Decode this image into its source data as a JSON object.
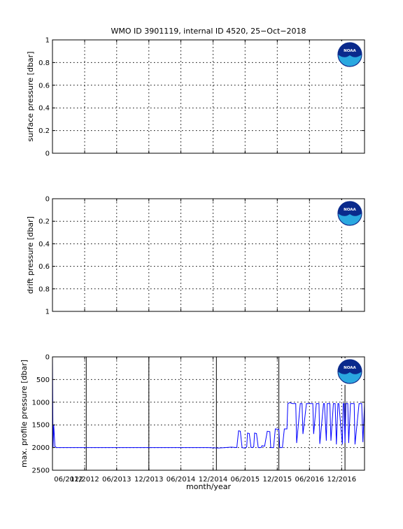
{
  "title": "WMO ID 3901119, internal ID 4520, 25−Oct−2018",
  "x_tick_labels": [
    "06/2012",
    "12/2012",
    "06/2013",
    "12/2013",
    "06/2014",
    "12/2014",
    "06/2015",
    "12/2015",
    "06/2016",
    "12/2016"
  ],
  "xlabel": "month/year",
  "logo_text": "NOAA",
  "colors": {
    "series": "#0000ff",
    "logo_blue": "#0a2a8c",
    "logo_cyan": "#2aa8e0"
  },
  "chart_data": [
    {
      "type": "line",
      "ylabel": "surface pressure [dbar]",
      "ylim": [
        0,
        1
      ],
      "y_reversed": false,
      "y_ticks": [
        "0",
        "0.2",
        "0.4",
        "0.6",
        "0.8",
        "1"
      ],
      "grid": true,
      "series": []
    },
    {
      "type": "line",
      "ylabel": "drift pressure [dbar]",
      "ylim": [
        0,
        1
      ],
      "y_reversed": true,
      "y_ticks": [
        "0",
        "0.2",
        "0.4",
        "0.6",
        "0.8",
        "1"
      ],
      "grid": true,
      "series": []
    },
    {
      "type": "line",
      "ylabel": "max. profile pressure [dbar]",
      "ylim": [
        0,
        2500
      ],
      "y_reversed": true,
      "y_ticks": [
        "0",
        "500",
        "1000",
        "1500",
        "2000",
        "2500"
      ],
      "grid": true,
      "vertical_lines_at": [
        "2012-12-10",
        "2013-12-01",
        "2014-12-20",
        "2015-12-10",
        "2016-12-20"
      ],
      "series": [
        {
          "x": [
            "2012-06-01",
            "2012-06-04",
            "2012-06-08",
            "2012-06-15",
            "2012-06-25",
            "2012-07-10",
            "2013-06-01",
            "2014-06-01",
            "2014-11-01",
            "2015-01-01",
            "2015-03-15",
            "2015-04-15",
            "2015-04-25",
            "2015-05-05",
            "2015-05-15",
            "2015-05-25",
            "2015-06-10",
            "2015-06-15",
            "2015-06-25",
            "2015-07-05",
            "2015-07-20",
            "2015-07-25",
            "2015-08-05",
            "2015-08-15",
            "2015-09-01",
            "2015-09-05",
            "2015-09-20",
            "2015-10-05",
            "2015-10-20",
            "2015-10-25",
            "2015-11-10",
            "2015-11-20",
            "2015-12-10",
            "2015-12-15",
            "2015-12-30",
            "2016-01-10",
            "2016-01-25",
            "2016-01-30",
            "2016-02-10",
            "2016-02-25",
            "2016-03-15",
            "2016-03-20",
            "2016-04-10",
            "2016-04-20",
            "2016-04-25",
            "2016-05-15",
            "2016-05-20",
            "2016-06-20",
            "2016-06-25",
            "2016-07-10",
            "2016-07-15",
            "2016-07-25",
            "2016-07-30",
            "2016-08-20",
            "2016-08-25",
            "2016-09-05",
            "2016-09-10",
            "2016-09-25",
            "2016-10-01",
            "2016-10-15",
            "2016-10-25",
            "2016-11-01",
            "2016-11-10",
            "2016-11-15",
            "2016-12-05",
            "2016-12-10",
            "2016-12-15",
            "2016-12-20",
            "2016-12-25",
            "2017-01-05",
            "2017-01-10",
            "2017-01-20",
            "2017-01-25",
            "2017-02-10",
            "2017-02-15",
            "2017-03-10",
            "2017-03-15",
            "2017-03-25",
            "2017-04-01",
            "2017-04-10"
          ],
          "values": [
            0,
            2000,
            1500,
            1980,
            2000,
            2000,
            2000,
            2000,
            2000,
            2010,
            1990,
            2000,
            1630,
            1640,
            2000,
            2010,
            1990,
            1680,
            1690,
            2000,
            1990,
            1680,
            1690,
            2000,
            2000,
            1960,
            1970,
            1640,
            1650,
            2000,
            2000,
            1590,
            1600,
            2000,
            2000,
            1590,
            1590,
            1030,
            1010,
            1030,
            1030,
            1900,
            1030,
            1030,
            1700,
            1030,
            1030,
            1030,
            1700,
            1030,
            1030,
            1030,
            1920,
            1030,
            1030,
            1850,
            1030,
            1030,
            1850,
            1030,
            1030,
            1930,
            1030,
            1030,
            1930,
            1030,
            1030,
            1900,
            1030,
            1030,
            1900,
            1030,
            1030,
            1030,
            1930,
            1030,
            1030,
            1030,
            1880,
            1030
          ]
        }
      ]
    }
  ]
}
